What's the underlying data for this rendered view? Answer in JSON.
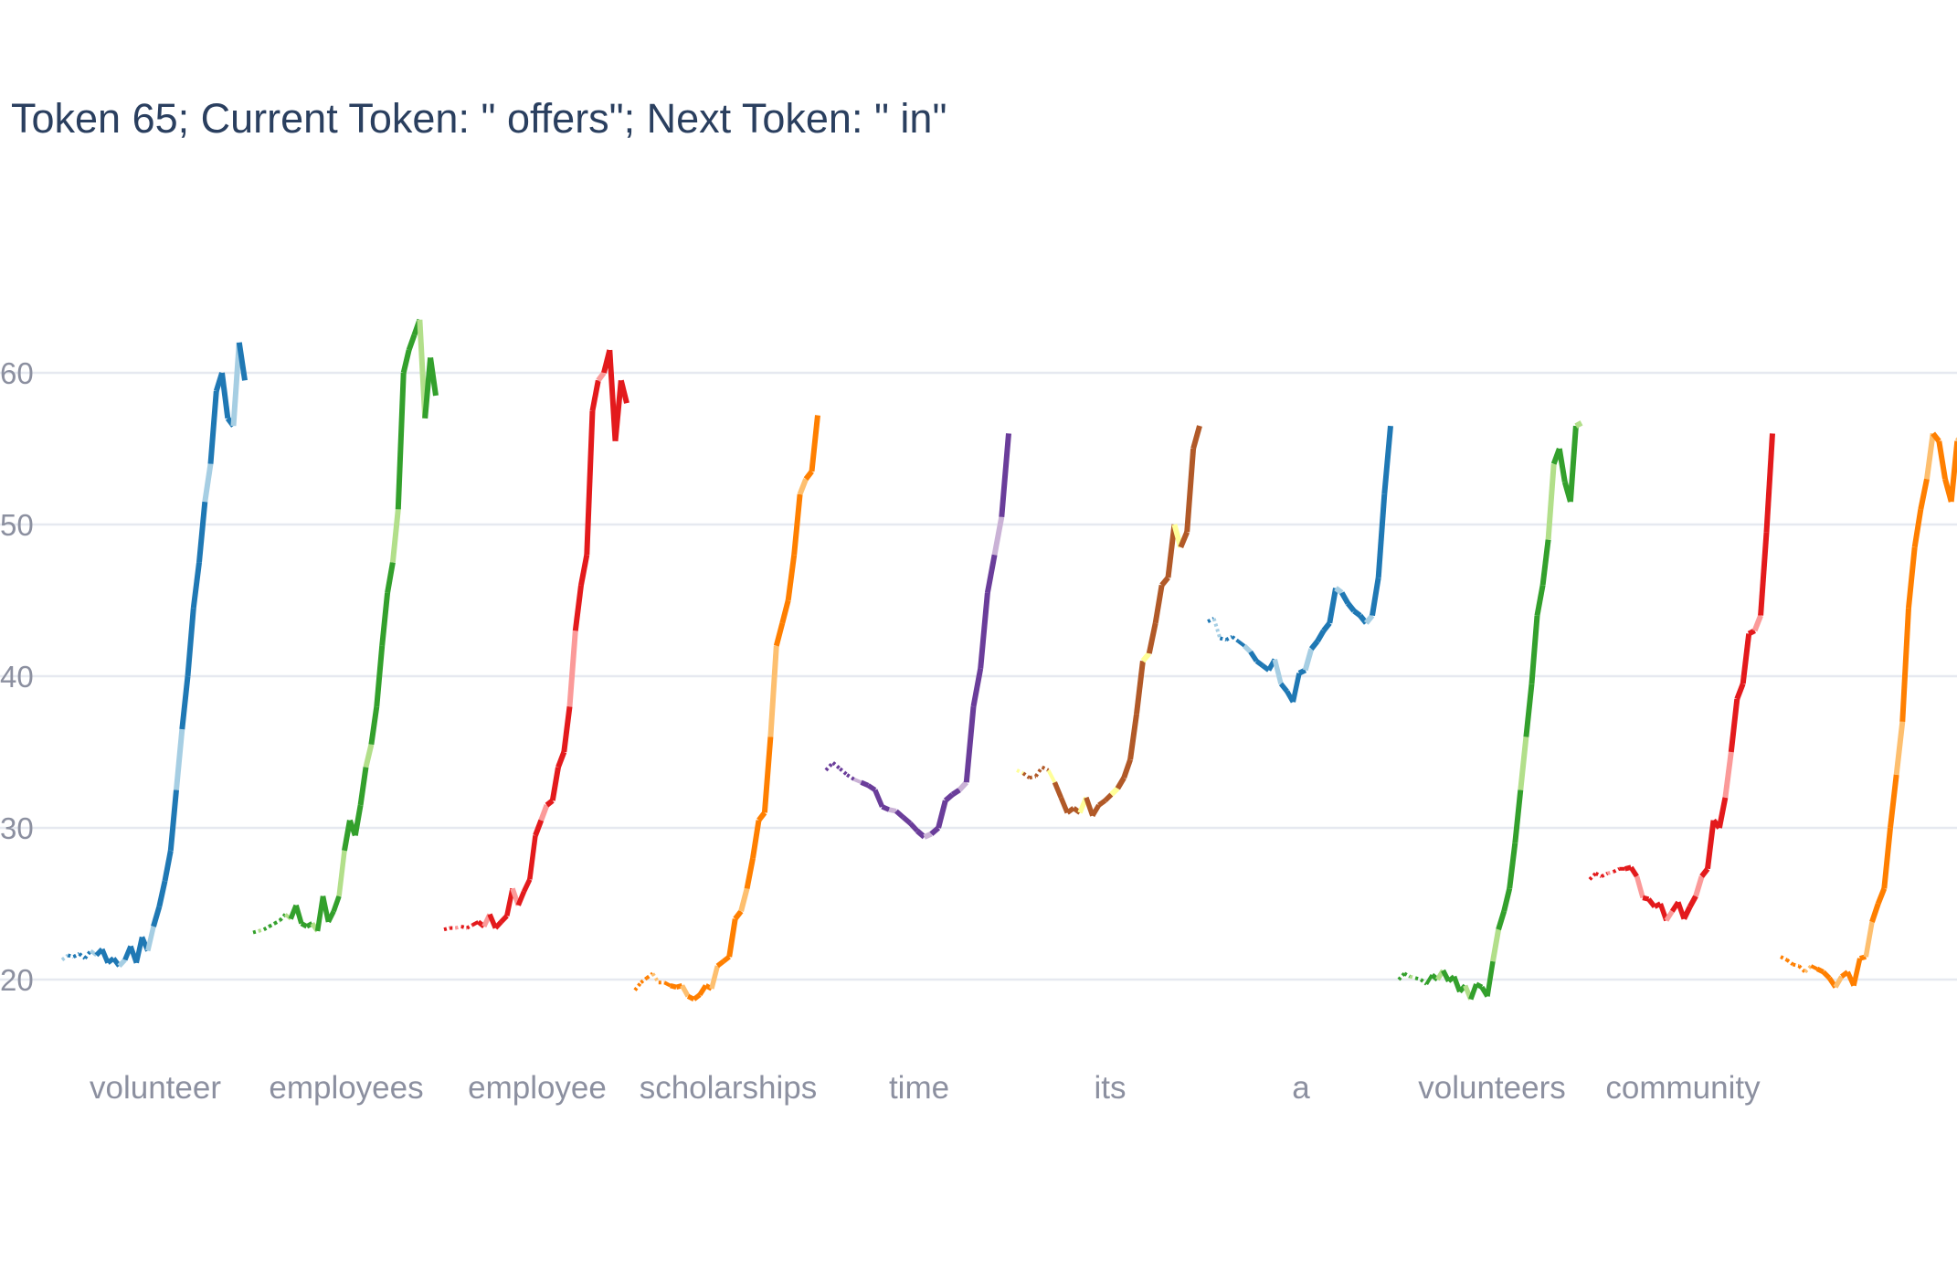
{
  "chart_data": {
    "type": "line",
    "title": "Token 65; Current Token: \" offers\"; Next Token: \" in\"",
    "xlabel": "",
    "ylabel": "",
    "ylim": [
      15,
      68
    ],
    "yticks": [
      20,
      30,
      40,
      50,
      60
    ],
    "grid": true,
    "legend": "none",
    "series": [
      {
        "label": "volunteer",
        "color": "#1f78b4",
        "light": "#a6cee3",
        "values": [
          21.3,
          21.6,
          21.5,
          21.7,
          21.4,
          21.9,
          21.6,
          22.0,
          21.1,
          21.4,
          20.9,
          21.3,
          22.2,
          21.1,
          22.8,
          21.9,
          23.5,
          24.8,
          26.5,
          28.5,
          32.5,
          36.5,
          40.0,
          44.5,
          47.5,
          51.5,
          54.0,
          58.8,
          60.0,
          57.0,
          56.5,
          62.0,
          59.5
        ]
      },
      {
        "label": "employees",
        "color": "#33a02c",
        "light": "#b2df8a",
        "values": [
          23.1,
          23.2,
          23.3,
          23.5,
          23.7,
          23.9,
          24.3,
          24.0,
          24.9,
          23.7,
          23.5,
          23.7,
          23.2,
          25.5,
          23.8,
          24.5,
          25.5,
          28.5,
          30.5,
          29.5,
          31.5,
          34.0,
          35.5,
          38.0,
          42.0,
          45.5,
          47.5,
          51.0,
          60.0,
          61.5,
          62.5,
          63.5,
          57.0,
          61.0,
          58.5
        ]
      },
      {
        "label": "employee",
        "color": "#e31a1c",
        "light": "#fb9a99",
        "values": [
          23.3,
          23.4,
          23.4,
          23.5,
          23.4,
          23.6,
          23.8,
          23.5,
          24.3,
          23.4,
          23.8,
          24.2,
          26.0,
          24.9,
          25.8,
          26.6,
          29.5,
          30.5,
          31.5,
          31.8,
          34.0,
          35.0,
          38.0,
          43.0,
          46.0,
          48.0,
          57.5,
          59.5,
          60.0,
          61.5,
          55.5,
          59.5,
          58.0
        ]
      },
      {
        "label": "scholarships",
        "color": "#ff7f00",
        "light": "#fdbf6f",
        "values": [
          19.3,
          19.8,
          20.1,
          20.4,
          19.8,
          19.8,
          19.6,
          19.5,
          19.6,
          18.9,
          18.7,
          19.0,
          19.6,
          19.4,
          20.9,
          21.2,
          21.5,
          24.0,
          24.5,
          26.0,
          28.0,
          30.5,
          31.0,
          36.0,
          42.0,
          43.5,
          45.0,
          48.0,
          52.0,
          53.0,
          53.5,
          57.2
        ]
      },
      {
        "label": "time",
        "color": "#6a3d9a",
        "light": "#cab2d6",
        "values": [
          33.8,
          34.3,
          33.9,
          33.5,
          33.2,
          33.0,
          32.8,
          32.5,
          31.4,
          31.2,
          31.1,
          30.7,
          30.3,
          29.8,
          29.4,
          29.6,
          30.0,
          31.8,
          32.2,
          32.5,
          33.0,
          38.0,
          40.5,
          45.5,
          48.0,
          50.5,
          56.0
        ]
      },
      {
        "label": "its",
        "color": "#b15928",
        "light": "#ffff99",
        "values": [
          33.8,
          33.6,
          33.3,
          33.4,
          34.0,
          33.8,
          33.0,
          32.0,
          31.0,
          31.3,
          31.0,
          32.0,
          30.8,
          31.5,
          31.8,
          32.2,
          32.6,
          33.3,
          34.5,
          37.5,
          41.0,
          41.5,
          43.5,
          46.0,
          46.5,
          50.0,
          48.5,
          49.5,
          55.0,
          56.5
        ]
      },
      {
        "label": "a",
        "color": "#1f78b4",
        "light": "#a6cee3",
        "values": [
          43.6,
          43.8,
          42.5,
          42.4,
          42.6,
          42.3,
          42.0,
          41.6,
          41.0,
          40.7,
          40.4,
          41.1,
          39.5,
          39.0,
          38.3,
          40.2,
          40.4,
          41.8,
          42.3,
          43.0,
          43.5,
          45.8,
          45.5,
          44.8,
          44.3,
          44.0,
          43.5,
          44.0,
          46.5,
          52.0,
          56.5
        ]
      },
      {
        "label": "volunteers",
        "color": "#33a02c",
        "light": "#b2df8a",
        "values": [
          20.0,
          20.4,
          20.2,
          20.1,
          20.0,
          19.7,
          20.3,
          20.0,
          20.6,
          19.9,
          20.2,
          19.2,
          19.6,
          18.7,
          19.7,
          19.5,
          18.9,
          21.2,
          23.3,
          24.5,
          26.0,
          29.0,
          32.5,
          36.0,
          39.5,
          44.0,
          46.0,
          49.0,
          54.0,
          55.0,
          52.8,
          51.5,
          56.5,
          56.7
        ]
      },
      {
        "label": "community",
        "color": "#e31a1c",
        "light": "#fb9a99",
        "values": [
          26.6,
          27.0,
          26.8,
          27.0,
          27.1,
          27.3,
          27.3,
          27.4,
          26.8,
          25.4,
          25.3,
          24.8,
          25.0,
          23.9,
          24.5,
          25.1,
          24.0,
          24.8,
          25.5,
          26.8,
          27.3,
          30.5,
          30.0,
          32.0,
          35.0,
          38.5,
          39.5,
          42.8,
          43.0,
          44.0,
          49.5,
          56.0
        ]
      },
      {
        "label": "",
        "color": "#ff7f00",
        "light": "#fdbf6f",
        "values": [
          21.5,
          21.3,
          21.0,
          20.9,
          20.5,
          20.9,
          20.7,
          20.5,
          20.1,
          19.5,
          20.2,
          20.5,
          19.6,
          21.4,
          21.5,
          23.8,
          25.0,
          26.0,
          30.0,
          33.5,
          37.0,
          44.5,
          48.5,
          51.0,
          53.0,
          56.0,
          55.5,
          53.0,
          51.5,
          55.5,
          56.0
        ]
      }
    ]
  }
}
